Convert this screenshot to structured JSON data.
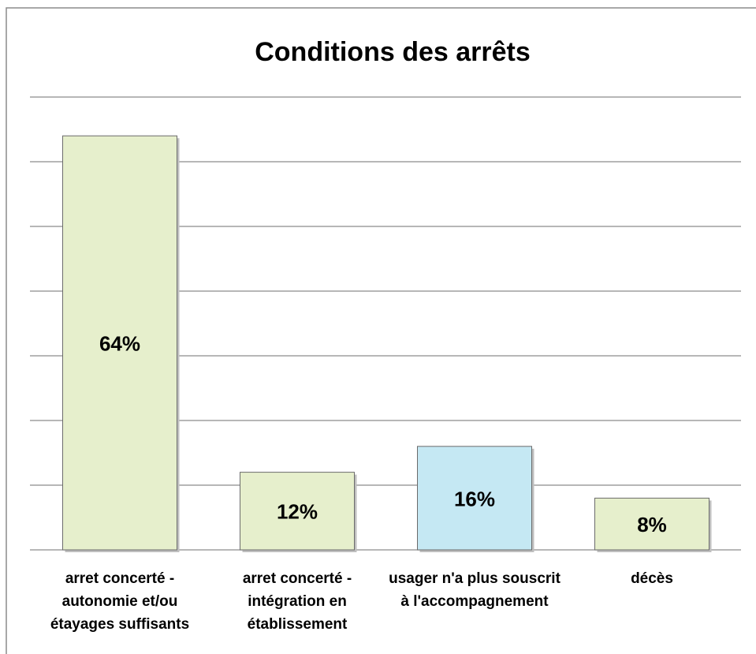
{
  "chart_data": {
    "type": "bar",
    "title": "Conditions des arrêts",
    "categories": [
      "arret concerté - autonomie et/ou étayages suffisants",
      "arret concerté - intégration en établissement",
      "usager n'a plus souscrit à l'accompagnement",
      "décès"
    ],
    "values": [
      64,
      12,
      16,
      8
    ],
    "value_labels": [
      "64%",
      "12%",
      "16%",
      "8%"
    ],
    "colors": [
      "#e6efcc",
      "#e6efcc",
      "#c5e8f3",
      "#e6efcc"
    ],
    "ylim": [
      0,
      70
    ],
    "yticks": [
      0,
      10,
      20,
      30,
      40,
      50,
      60,
      70
    ],
    "grid": true
  }
}
